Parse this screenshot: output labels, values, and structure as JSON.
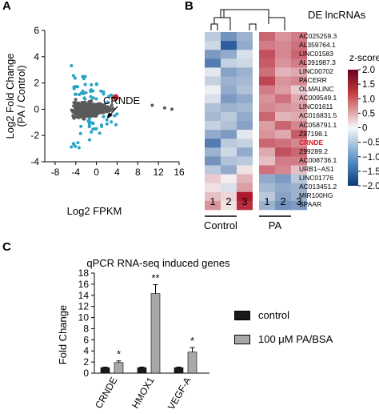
{
  "panels": {
    "a": "A",
    "b": "B",
    "c": "C"
  },
  "colors": {
    "scatter_gray": "#5a5a5a",
    "scatter_highlight": "#2aa3c4",
    "crnde_red": "#d7191c",
    "bar_control": "#1a1a1a",
    "bar_pa": "#a8a8a8",
    "heat_low": "#2c5d9e",
    "heat_mid": "#f7f7f7",
    "heat_high": "#b2182b"
  },
  "chart_data": [
    {
      "type": "scatter",
      "panel": "A",
      "xlabel": "Log2 FPKM",
      "ylabel": "Log2 Fold Change (PA / Control)",
      "xlim": [
        -10,
        16
      ],
      "ylim": [
        -4,
        6
      ],
      "xticks": [
        -8,
        -4,
        0,
        4,
        8,
        12,
        16
      ],
      "yticks": [
        -4,
        -2,
        0,
        2,
        4,
        6
      ],
      "annotation": "CRNDE",
      "highlighted_point": {
        "x": 3.7,
        "y": 0.9
      },
      "series": [
        {
          "role": "not significant",
          "color": "gray"
        },
        {
          "role": "significant",
          "color": "blue"
        }
      ]
    },
    {
      "type": "heatmap",
      "panel": "B",
      "title": "DE lncRNAs",
      "legend_title": "z-score",
      "scale_ticks": [
        "2.0",
        "1.5",
        "1.0",
        "0.5",
        "0",
        "−0.5",
        "−1.0",
        "−1.5",
        "−2.0"
      ],
      "vmin": -2,
      "vmax": 2,
      "columns": [
        "1",
        "2",
        "3",
        "1",
        "2",
        "3"
      ],
      "groups": [
        "Control",
        "PA"
      ],
      "rows": [
        "AC025259.3",
        "AL359764.1",
        "LINC01583",
        "AL391987.3",
        "LINC00702",
        "PACERR",
        "OLMALINC",
        "AC009549.1",
        "LINC01611",
        "AC016831.5",
        "AC058791.1",
        "Z97198.1",
        "CRNDE",
        "Z99289.2",
        "AC008736.1",
        "URB1−AS1",
        "LINC01776",
        "AC013451.2",
        "MIR100HG",
        "SPAAR"
      ],
      "highlight_row": "CRNDE",
      "values": [
        [
          -0.6,
          -1.3,
          -0.9,
          1.3,
          0.9,
          1.1
        ],
        [
          -0.4,
          -2.0,
          -1.0,
          1.1,
          1.0,
          1.2
        ],
        [
          -1.2,
          -1.0,
          -0.3,
          1.5,
          1.0,
          1.3
        ],
        [
          -1.6,
          -0.5,
          -0.4,
          1.4,
          0.9,
          1.1
        ],
        [
          -0.2,
          -1.1,
          -0.9,
          1.2,
          0.6,
          0.7
        ],
        [
          -0.5,
          -0.9,
          -0.8,
          1.6,
          0.9,
          1.0
        ],
        [
          -0.1,
          -1.0,
          -0.7,
          1.1,
          0.8,
          0.4
        ],
        [
          -0.3,
          -1.2,
          -1.0,
          0.9,
          1.2,
          0.7
        ],
        [
          -0.7,
          -0.9,
          -0.8,
          1.0,
          0.9,
          0.8
        ],
        [
          -0.8,
          -0.6,
          -1.0,
          1.3,
          0.6,
          0.7
        ],
        [
          -0.5,
          -0.7,
          -1.1,
          0.8,
          1.3,
          1.0
        ],
        [
          -1.0,
          -1.2,
          -0.2,
          0.9,
          0.7,
          1.4
        ],
        [
          -1.6,
          -0.6,
          -0.5,
          1.3,
          1.2,
          1.0
        ],
        [
          -0.9,
          -0.4,
          -1.0,
          0.7,
          1.5,
          1.3
        ],
        [
          -1.3,
          -0.7,
          -0.6,
          0.5,
          1.1,
          1.1
        ],
        [
          -0.6,
          -1.0,
          0.2,
          1.2,
          1.0,
          0.5
        ],
        [
          0.4,
          0.1,
          0.6,
          -1.0,
          -1.2,
          -0.6
        ],
        [
          0.2,
          -0.3,
          0.8,
          -0.8,
          -1.0,
          -0.9
        ],
        [
          0.5,
          0.3,
          2.0,
          -0.6,
          -1.1,
          -0.9
        ],
        [
          0.9,
          0.2,
          1.8,
          -0.9,
          -1.3,
          -1.2
        ]
      ]
    },
    {
      "type": "bar",
      "panel": "C",
      "title": "qPCR RNA-seq induced genes",
      "ylabel": "Fold Change",
      "ylim": [
        0,
        18
      ],
      "yticks": [
        0,
        2,
        4,
        6,
        8,
        10,
        12,
        14,
        16,
        18
      ],
      "categories": [
        "CRNDE",
        "HMOX1",
        "VEGF-A"
      ],
      "series": [
        {
          "name": "control",
          "values": [
            1.0,
            1.0,
            1.0
          ],
          "errors": [
            0.1,
            0.1,
            0.1
          ]
        },
        {
          "name": "100 μM PA/BSA",
          "values": [
            1.9,
            14.3,
            3.8
          ],
          "errors": [
            0.3,
            1.6,
            0.8
          ]
        }
      ],
      "significance": [
        "*",
        "**",
        "*"
      ],
      "legend_placement": "right"
    }
  ]
}
